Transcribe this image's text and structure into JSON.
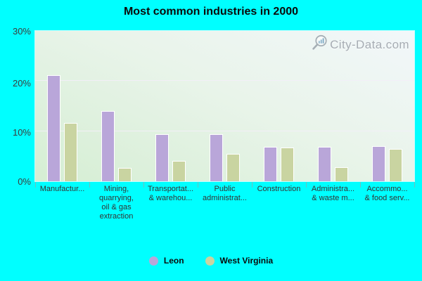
{
  "title": "Most common industries in 2000",
  "watermark": "City-Data.com",
  "colors": {
    "background": "#00ffff",
    "leon_bar": "#b9a6d9",
    "west_virginia_bar": "#c9d4a1",
    "bar_border": "#ffffff",
    "plot_gradient_top": "#f2f7fa",
    "plot_gradient_bottom": "#d5eed3"
  },
  "y_axis": {
    "ticks": [
      "30%",
      "20%",
      "10%",
      "0%"
    ]
  },
  "legend": [
    {
      "label": "Leon",
      "color": "#b9a6d9"
    },
    {
      "label": "West Virginia",
      "color": "#c9d4a1"
    }
  ],
  "chart_data": {
    "type": "bar",
    "title": "Most common industries in 2000",
    "xlabel": "",
    "ylabel": "",
    "ylim": [
      0,
      30
    ],
    "y_tick_step": 10,
    "y_tick_labels": [
      "0%",
      "10%",
      "20%",
      "30%"
    ],
    "grid": true,
    "legend_position": "bottom",
    "categories": [
      "Manufactur...",
      "Mining,\nquarrying,\noil & gas\nextraction",
      "Transportat...\n& warehou...",
      "Public\nadministrat...",
      "Construction",
      "Administra...\n& waste m...",
      "Accommo...\n& food serv..."
    ],
    "series": [
      {
        "name": "Leon",
        "color": "#b9a6d9",
        "values": [
          21.2,
          14.0,
          9.4,
          9.4,
          6.9,
          6.9,
          7.0
        ]
      },
      {
        "name": "West Virginia",
        "color": "#c9d4a1",
        "values": [
          11.7,
          2.7,
          4.1,
          5.5,
          6.8,
          2.8,
          6.4
        ]
      }
    ]
  }
}
